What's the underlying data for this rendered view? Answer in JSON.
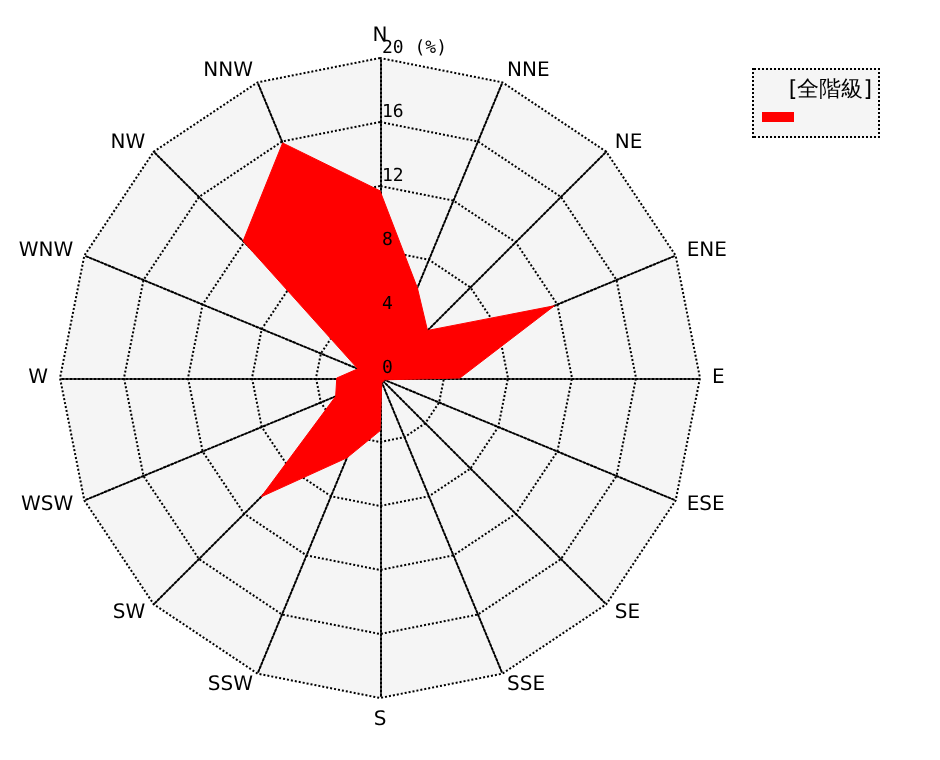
{
  "chart_data": {
    "type": "radar",
    "categories": [
      "N",
      "NNE",
      "NE",
      "ENE",
      "E",
      "ESE",
      "SE",
      "SSE",
      "S",
      "SSW",
      "SW",
      "WSW",
      "W",
      "WNW",
      "NW",
      "NNW"
    ],
    "series": [
      {
        "name": "[全階級]",
        "color": "#ff0000",
        "values": [
          11.7,
          6.1,
          4.2,
          11.8,
          5.0,
          0.3,
          0.3,
          0.3,
          3.3,
          5.4,
          10.5,
          3.0,
          2.7,
          1.5,
          12.1,
          15.9
        ]
      }
    ],
    "ylim": [
      0,
      20
    ],
    "yticks": [
      0,
      4,
      8,
      12,
      16,
      {
        "value": 20,
        "label": "20 (%)"
      }
    ],
    "legend": "top right",
    "grid": true
  }
}
